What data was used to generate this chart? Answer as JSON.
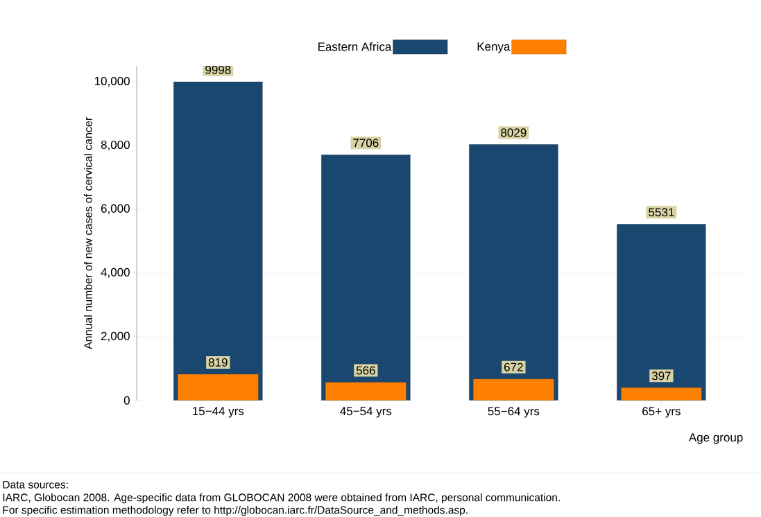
{
  "chart_data": {
    "type": "bar",
    "categories": [
      "15−44 yrs",
      "45−54 yrs",
      "55−64 yrs",
      "65+ yrs"
    ],
    "series": [
      {
        "name": "Eastern Africa",
        "color": "#1a476f",
        "values": [
          9998,
          7706,
          8029,
          5531
        ]
      },
      {
        "name": "Kenya",
        "color": "#ff7f00",
        "values": [
          819,
          566,
          672,
          397
        ]
      }
    ],
    "ylabel": "Annual number of new cases of cervical cancer",
    "xlabel": "Age group",
    "ylim": [
      0,
      10500
    ],
    "yticks": [
      0,
      {
        "value": 2000,
        "label": "2,000"
      },
      {
        "value": 4000,
        "label": "4,000"
      },
      {
        "value": 6000,
        "label": "6,000"
      },
      {
        "value": 8000,
        "label": "8,000"
      },
      {
        "value": 10000,
        "label": "10,000"
      }
    ],
    "grid": "y",
    "legend": "top",
    "data_labels": true,
    "annotations": [
      "Data sources:",
      "IARC, Globocan 2008. Age-specific data from GLOBOCAN 2008 were obtained from IARC, personal communication.",
      "For specific estimation methodology refer to http://globocan.iarc.fr/DataSource_and_methods.asp."
    ]
  }
}
